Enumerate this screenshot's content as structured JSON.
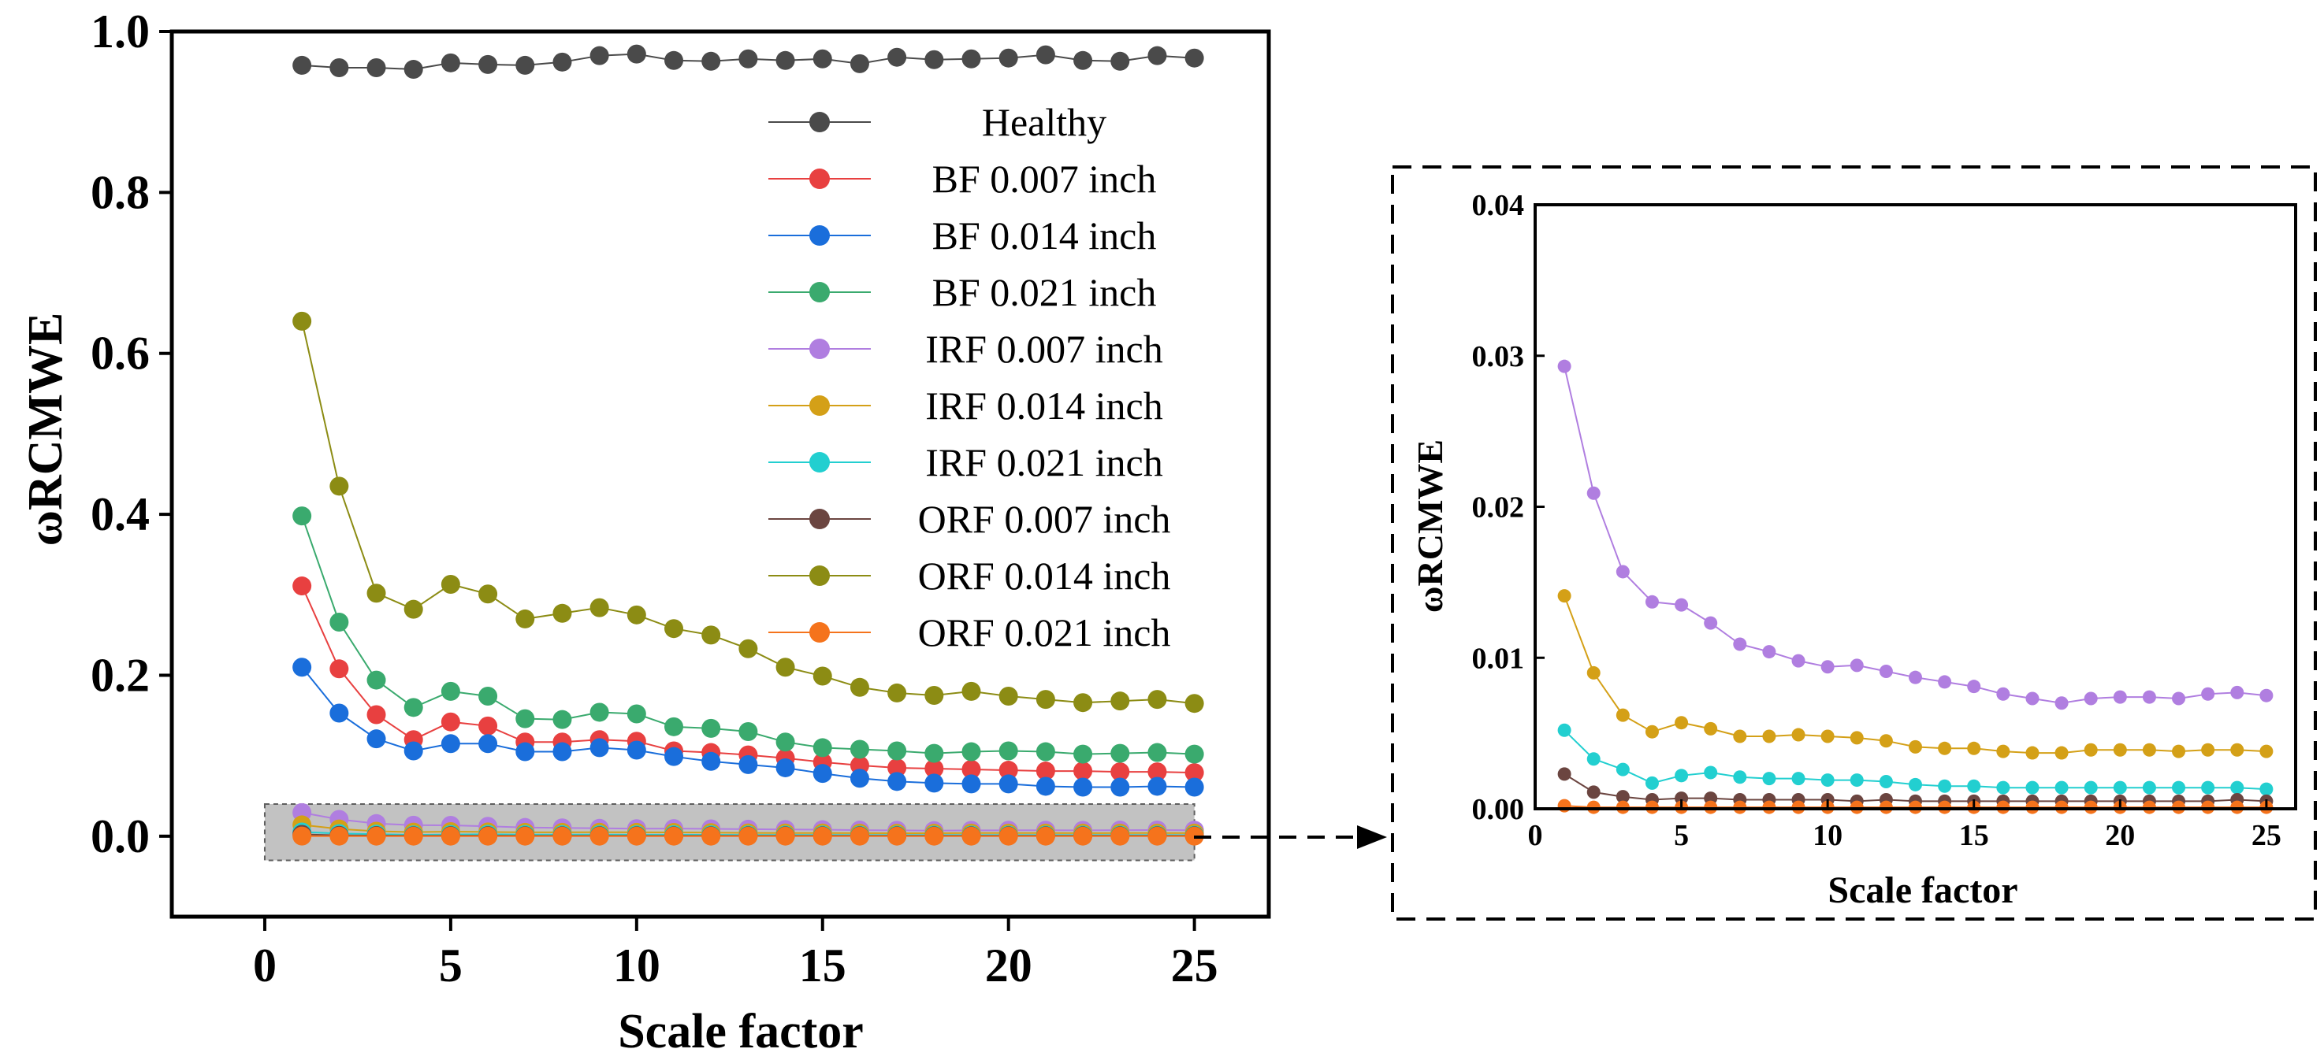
{
  "chart_data": [
    {
      "id": "main",
      "type": "line",
      "xlabel": "Scale factor",
      "ylabel": "ωRCMWE",
      "xlim": [
        -2.5,
        27
      ],
      "ylim": [
        -0.1,
        1.0
      ],
      "xticks": [
        0,
        5,
        10,
        15,
        20,
        25
      ],
      "xtick_labels": [
        "0",
        "5",
        "10",
        "15",
        "20",
        "25"
      ],
      "yticks": [
        0.0,
        0.2,
        0.4,
        0.6,
        0.8,
        1.0
      ],
      "ytick_labels": [
        "0.0",
        "0.2",
        "0.4",
        "0.6",
        "0.8",
        "1.0"
      ],
      "legend_position": "top-right",
      "x": [
        1,
        2,
        3,
        4,
        5,
        6,
        7,
        8,
        9,
        10,
        11,
        12,
        13,
        14,
        15,
        16,
        17,
        18,
        19,
        20,
        21,
        22,
        23,
        24,
        25
      ],
      "series": [
        {
          "name": "Healthy",
          "color": "#4a4a4a",
          "values": [
            0.958,
            0.955,
            0.955,
            0.953,
            0.961,
            0.959,
            0.958,
            0.962,
            0.97,
            0.972,
            0.964,
            0.963,
            0.966,
            0.964,
            0.966,
            0.96,
            0.968,
            0.965,
            0.966,
            0.967,
            0.971,
            0.964,
            0.963,
            0.97,
            0.967
          ]
        },
        {
          "name": "BF 0.007 inch",
          "color": "#e84040",
          "values": [
            0.311,
            0.208,
            0.151,
            0.12,
            0.142,
            0.137,
            0.117,
            0.117,
            0.12,
            0.118,
            0.106,
            0.104,
            0.101,
            0.097,
            0.092,
            0.088,
            0.085,
            0.084,
            0.083,
            0.082,
            0.081,
            0.081,
            0.08,
            0.08,
            0.079
          ]
        },
        {
          "name": "BF 0.014 inch",
          "color": "#1a6edb",
          "values": [
            0.21,
            0.153,
            0.121,
            0.106,
            0.115,
            0.115,
            0.105,
            0.105,
            0.11,
            0.107,
            0.099,
            0.093,
            0.089,
            0.085,
            0.078,
            0.072,
            0.068,
            0.066,
            0.065,
            0.065,
            0.062,
            0.061,
            0.061,
            0.062,
            0.061
          ]
        },
        {
          "name": "BF 0.021 inch",
          "color": "#3aaa6e",
          "values": [
            0.398,
            0.266,
            0.194,
            0.16,
            0.18,
            0.174,
            0.146,
            0.145,
            0.154,
            0.152,
            0.136,
            0.134,
            0.13,
            0.117,
            0.11,
            0.108,
            0.106,
            0.103,
            0.105,
            0.106,
            0.105,
            0.102,
            0.103,
            0.104,
            0.102
          ]
        },
        {
          "name": "IRF 0.007 inch",
          "color": "#b07ee0",
          "values": [
            0.0293,
            0.0209,
            0.0157,
            0.0137,
            0.0135,
            0.0123,
            0.0109,
            0.0104,
            0.0098,
            0.0094,
            0.0095,
            0.0091,
            0.0087,
            0.0084,
            0.0081,
            0.0076,
            0.0073,
            0.007,
            0.0073,
            0.0074,
            0.0074,
            0.0073,
            0.0076,
            0.0077,
            0.0075
          ]
        },
        {
          "name": "IRF 0.014 inch",
          "color": "#d4a017",
          "values": [
            0.0141,
            0.009,
            0.0062,
            0.0051,
            0.0057,
            0.0053,
            0.0048,
            0.0048,
            0.0049,
            0.0048,
            0.0047,
            0.0045,
            0.0041,
            0.004,
            0.004,
            0.0038,
            0.0037,
            0.0037,
            0.0039,
            0.0039,
            0.0039,
            0.0038,
            0.0039,
            0.0039,
            0.0038
          ]
        },
        {
          "name": "IRF 0.021 inch",
          "color": "#22cfd0",
          "values": [
            0.0052,
            0.0033,
            0.0026,
            0.0017,
            0.0022,
            0.0024,
            0.0021,
            0.002,
            0.002,
            0.0019,
            0.0019,
            0.0018,
            0.0016,
            0.0015,
            0.0015,
            0.0014,
            0.0014,
            0.0014,
            0.0014,
            0.0014,
            0.0014,
            0.0014,
            0.0014,
            0.0014,
            0.0013
          ]
        },
        {
          "name": "ORF 0.007 inch",
          "color": "#6b4540",
          "values": [
            0.0023,
            0.0011,
            0.0008,
            0.0006,
            0.0007,
            0.0007,
            0.0006,
            0.0006,
            0.0006,
            0.0006,
            0.0005,
            0.0006,
            0.0005,
            0.0005,
            0.0005,
            0.0005,
            0.0005,
            0.0005,
            0.0005,
            0.0005,
            0.0005,
            0.0005,
            0.0005,
            0.0006,
            0.0005
          ]
        },
        {
          "name": "ORF 0.014 inch",
          "color": "#8c8c14",
          "values": [
            0.64,
            0.435,
            0.302,
            0.282,
            0.313,
            0.301,
            0.27,
            0.277,
            0.284,
            0.275,
            0.258,
            0.25,
            0.233,
            0.21,
            0.199,
            0.185,
            0.178,
            0.175,
            0.18,
            0.174,
            0.17,
            0.166,
            0.168,
            0.17,
            0.165
          ]
        },
        {
          "name": "ORF 0.021 inch",
          "color": "#f5731c",
          "values": [
            0.0002,
            0.0001,
            0.0001,
            0.0001,
            0.0001,
            0.0001,
            0.0001,
            0.0001,
            0.0001,
            0.0001,
            0.0001,
            0.0001,
            0.0001,
            0.0001,
            0.0001,
            0.0001,
            0.0001,
            0.0001,
            0.0001,
            0.0001,
            0.0001,
            0.0001,
            0.0001,
            0.0001,
            0.0001
          ]
        }
      ],
      "zoom_region": {
        "x_range": [
          0,
          25
        ],
        "y_range": [
          -0.03,
          0.04
        ],
        "fill_color": "#b8b8b8"
      }
    },
    {
      "id": "inset",
      "type": "line",
      "xlabel": "Scale factor",
      "ylabel": "ωRCMWE",
      "xlim": [
        0,
        26
      ],
      "ylim": [
        0,
        0.04
      ],
      "xticks": [
        0,
        5,
        10,
        15,
        20,
        25
      ],
      "xtick_labels": [
        "0",
        "5",
        "10",
        "15",
        "20",
        "25"
      ],
      "yticks": [
        0.0,
        0.01,
        0.02,
        0.03,
        0.04
      ],
      "ytick_labels": [
        "0.00",
        "0.01",
        "0.02",
        "0.03",
        "0.04"
      ],
      "x": [
        1,
        2,
        3,
        4,
        5,
        6,
        7,
        8,
        9,
        10,
        11,
        12,
        13,
        14,
        15,
        16,
        17,
        18,
        19,
        20,
        21,
        22,
        23,
        24,
        25
      ],
      "series_ref": [
        "IRF 0.007 inch",
        "IRF 0.014 inch",
        "IRF 0.021 inch",
        "ORF 0.007 inch",
        "ORF 0.021 inch"
      ]
    }
  ]
}
